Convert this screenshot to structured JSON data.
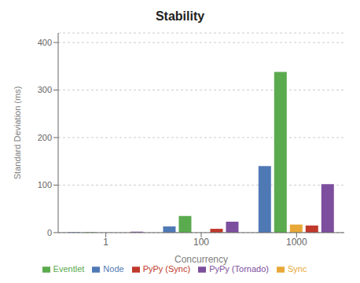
{
  "chart_data": {
    "type": "bar",
    "title": "Stability",
    "xlabel": "Concurrency",
    "ylabel": "Standard Deviation (ms)",
    "categories": [
      "1",
      "100",
      "1000"
    ],
    "series": [
      {
        "name": "Node",
        "color": "#4f79b5",
        "values": [
          1,
          13,
          140
        ]
      },
      {
        "name": "Eventlet",
        "color": "#5aaa4e",
        "values": [
          1,
          35,
          338
        ]
      },
      {
        "name": "Sync",
        "color": "#e8a838",
        "values": [
          0,
          0,
          17
        ]
      },
      {
        "name": "PyPy (Sync)",
        "color": "#c0392b",
        "values": [
          0,
          8,
          15
        ]
      },
      {
        "name": "PyPy (Tornado)",
        "color": "#7d4e9e",
        "values": [
          2,
          23,
          102
        ]
      }
    ],
    "ylim": [
      0,
      420
    ],
    "yticks": [
      0,
      100,
      200,
      300,
      400
    ],
    "grid": true,
    "legend": "bottom"
  }
}
